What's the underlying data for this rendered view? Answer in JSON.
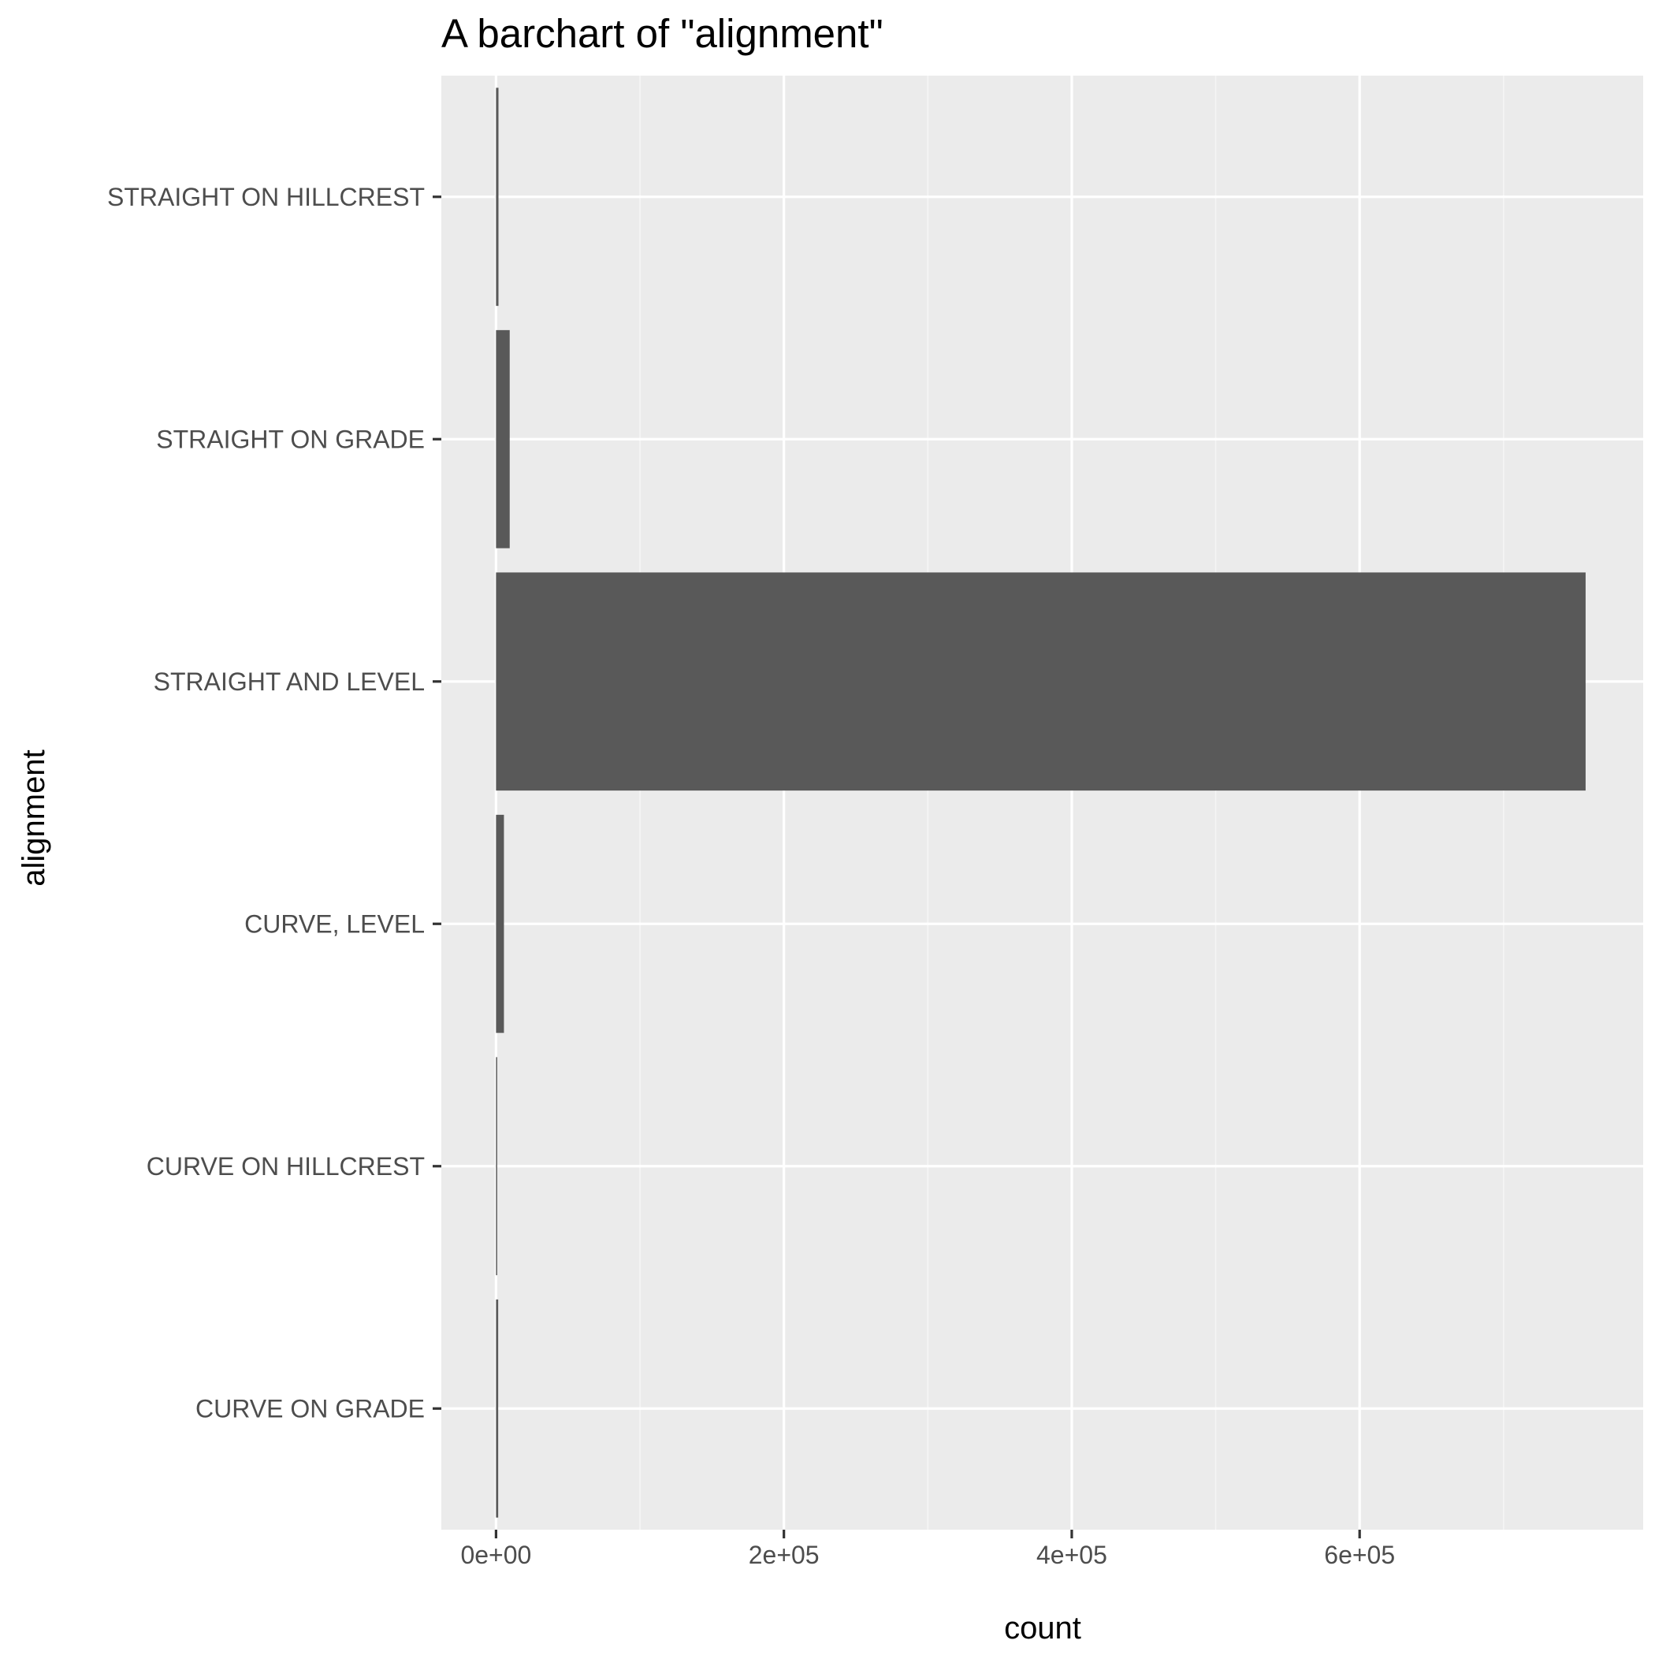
{
  "chart_data": {
    "type": "bar",
    "orientation": "horizontal",
    "title": "A barchart of \"alignment\"",
    "xlabel": "count",
    "ylabel": "alignment",
    "categories": [
      "CURVE ON GRADE",
      "CURVE ON HILLCREST",
      "CURVE, LEVEL",
      "STRAIGHT AND LEVEL",
      "STRAIGHT ON GRADE",
      "STRAIGHT ON HILLCREST"
    ],
    "values": [
      1500,
      700,
      5500,
      757000,
      9500,
      1700
    ],
    "xlim": [
      -38000,
      797000
    ],
    "xticks": [
      0,
      200000,
      400000,
      600000
    ],
    "xtick_labels": [
      "0e+00",
      "2e+05",
      "4e+05",
      "6e+05"
    ],
    "grid": true,
    "legend": "none",
    "colors": {
      "bar": "#595959",
      "panel": "#ebebeb",
      "grid_major": "#ffffff",
      "grid_minor": "#f5f5f5",
      "tick_label": "#4d4d4d",
      "tick_mark": "#333333"
    }
  }
}
